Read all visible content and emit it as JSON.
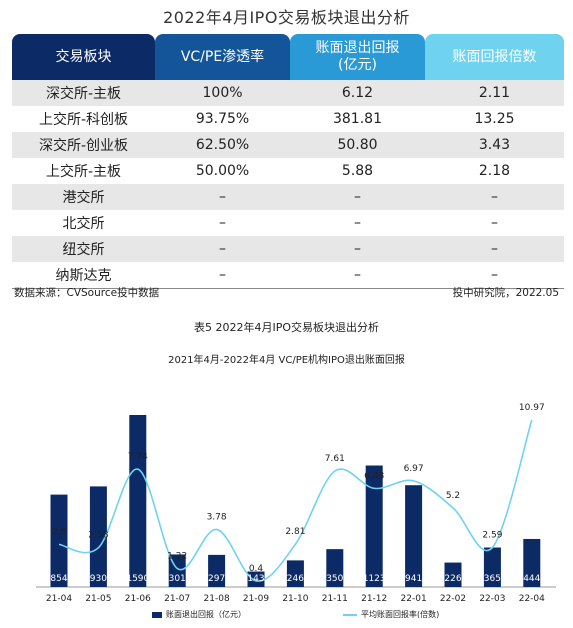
{
  "page_title": "2022年4月IPO交易板块退出分析",
  "table": {
    "headers": [
      "交易板块",
      "VC/PE渗透率",
      "账面退出回报\n(亿元)",
      "账面回报倍数"
    ],
    "rows": [
      [
        "深交所-主板",
        "100%",
        "6.12",
        "2.11"
      ],
      [
        "上交所-科创板",
        "93.75%",
        "381.81",
        "13.25"
      ],
      [
        "深交所-创业板",
        "62.50%",
        "50.80",
        "3.43"
      ],
      [
        "上交所-主板",
        "50.00%",
        "5.88",
        "2.18"
      ],
      [
        "港交所",
        "–",
        "–",
        "–"
      ],
      [
        "北交所",
        "–",
        "–",
        "–"
      ],
      [
        "纽交所",
        "–",
        "–",
        "–"
      ],
      [
        "纳斯达克",
        "–",
        "–",
        "–"
      ]
    ]
  },
  "source_note": "数据来源：CVSource投中数据",
  "institute_note": "投中研究院，2022.05",
  "caption": "表5 2022年4月IPO交易板块退出分析",
  "colors": {
    "bar": "#0b2a66",
    "line": "#6fd3ef"
  },
  "chart_data": {
    "type": "bar",
    "title": "2021年4月-2022年4月 VC/PE机构IPO退出账面回报",
    "categories": [
      "21-04",
      "21-05",
      "21-06",
      "21-07",
      "21-08",
      "21-09",
      "21-10",
      "21-11",
      "21-12",
      "22-01",
      "22-02",
      "22-03",
      "22-04"
    ],
    "series": [
      {
        "name": "账面退出回报（亿元）",
        "kind": "bar",
        "values": [
          854,
          930,
          1590,
          301,
          297,
          143,
          246,
          350,
          1123,
          941,
          226,
          365,
          444
        ]
      },
      {
        "name": "平均账面回报率(倍数)",
        "kind": "line",
        "values": [
          2.8,
          2.58,
          7.74,
          1.22,
          3.78,
          0.4,
          2.81,
          7.61,
          6.48,
          6.97,
          5.2,
          2.59,
          10.97
        ]
      }
    ],
    "bar_ylim": [
      0,
      1700
    ],
    "line_ylim": [
      0,
      11.5
    ],
    "grid": false,
    "legend": "bottom"
  }
}
